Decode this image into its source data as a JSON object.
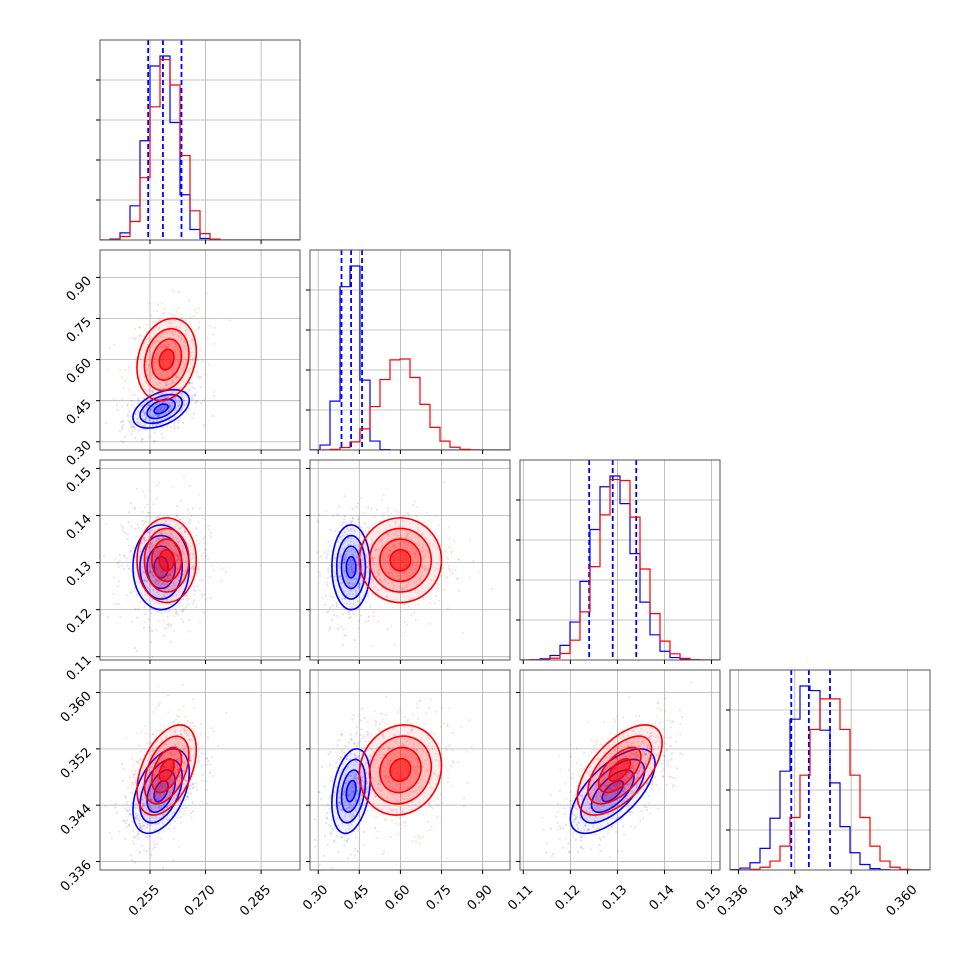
{
  "chart_data": {
    "type": "corner",
    "grid": true,
    "colors": {
      "blue": "#0000ff",
      "red": "#ff0000"
    },
    "parameters": [
      {
        "range": [
          0.2415,
          0.2955
        ],
        "ticks": [
          0.255,
          0.27,
          0.285
        ],
        "tick_labels": [
          "0.255",
          "0.270",
          "0.285"
        ]
      },
      {
        "range": [
          0.27,
          1.0
        ],
        "ticks": [
          0.3,
          0.45,
          0.6,
          0.75,
          0.9
        ],
        "tick_labels": [
          "0.30",
          "0.45",
          "0.60",
          "0.75",
          "0.90"
        ]
      },
      {
        "range": [
          0.1093,
          0.1518
        ],
        "ticks": [
          0.11,
          0.12,
          0.13,
          0.14,
          0.15
        ],
        "tick_labels": [
          "0.11",
          "0.12",
          "0.13",
          "0.14",
          "0.15"
        ]
      },
      {
        "range": [
          0.3348,
          0.3632
        ],
        "ticks": [
          0.336,
          0.344,
          0.352,
          0.36
        ],
        "tick_labels": [
          "0.336",
          "0.344",
          "0.352",
          "0.360"
        ]
      }
    ],
    "series": [
      {
        "color": "#0000ff",
        "mean": [
          0.258,
          0.42,
          0.129,
          0.346
        ],
        "sd": [
          0.0038,
          0.035,
          0.0045,
          0.003
        ],
        "corr": {
          "0-1": 0.45,
          "0-2": 0.0,
          "0-3": 0.45,
          "1-2": 0.0,
          "1-3": 0.3,
          "2-3": 0.65
        },
        "quantiles": [
          [
            0.2545,
            0.2585,
            0.2635
          ],
          [
            0.385,
            0.42,
            0.46
          ],
          [
            0.124,
            0.129,
            0.134
          ],
          [
            0.3435,
            0.346,
            0.349
          ]
        ]
      },
      {
        "color": "#ff0000",
        "mean": [
          0.2595,
          0.6,
          0.1305,
          0.349
        ],
        "sd": [
          0.004,
          0.075,
          0.0045,
          0.0032
        ],
        "corr": {
          "0-1": 0.2,
          "0-2": 0.0,
          "0-3": 0.45,
          "1-2": 0.0,
          "1-3": 0.1,
          "2-3": 0.6
        },
        "quantiles": []
      }
    ]
  }
}
